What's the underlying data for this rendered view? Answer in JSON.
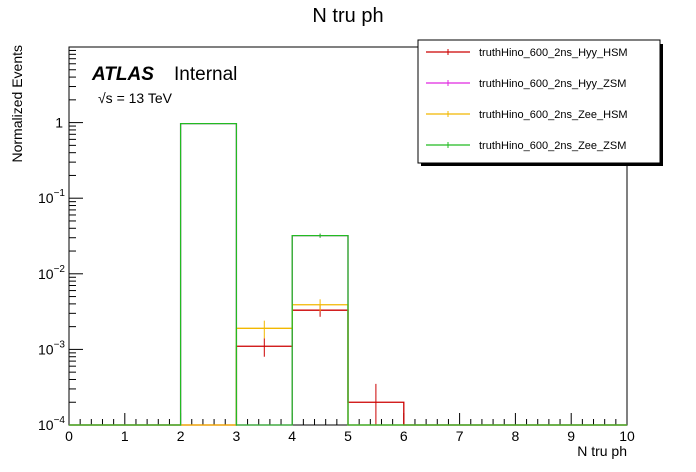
{
  "chart_data": {
    "type": "histogram",
    "title": "N tru ph",
    "xlabel": "N tru ph",
    "ylabel": "Normalized Events",
    "xlim": [
      0,
      10
    ],
    "ylim": [
      0.0001,
      10
    ],
    "yscale": "log",
    "x_ticks": [
      "0",
      "1",
      "2",
      "3",
      "4",
      "5",
      "6",
      "7",
      "8",
      "9",
      "10"
    ],
    "y_ticks": [
      {
        "value": 0.0001,
        "base": "10",
        "exp": "−4"
      },
      {
        "value": 0.001,
        "base": "10",
        "exp": "−3"
      },
      {
        "value": 0.01,
        "base": "10",
        "exp": "−2"
      },
      {
        "value": 0.1,
        "base": "10",
        "exp": "−1"
      },
      {
        "value": 1,
        "base": "1",
        "exp": ""
      }
    ],
    "atlas_label": "ATLAS",
    "atlas_status": "Internal",
    "energy_label": "√s = 13 TeV",
    "legend_position": "top-right",
    "bin_edges": [
      0,
      1,
      2,
      3,
      4,
      5,
      6,
      7,
      8,
      9,
      10
    ],
    "series": [
      {
        "name": "truthHino_600_2ns_Hyy_HSM",
        "color": "#cc0000",
        "values": [
          0,
          0,
          0,
          0.0011,
          0.0033,
          0.0002,
          0,
          0,
          0,
          0
        ],
        "errors": [
          0,
          0,
          0,
          0.0003,
          0.0006,
          0.00015,
          0,
          0,
          0,
          0
        ]
      },
      {
        "name": "truthHino_600_2ns_Hyy_ZSM",
        "color": "#e028e0",
        "values": [
          0,
          0,
          0.97,
          0,
          0.032,
          0,
          0,
          0,
          0,
          0
        ],
        "errors": [
          0,
          0,
          0.01,
          0,
          0.002,
          0,
          0,
          0,
          0,
          0
        ]
      },
      {
        "name": "truthHino_600_2ns_Zee_HSM",
        "color": "#f2b800",
        "values": [
          0,
          0,
          0,
          0.0019,
          0.0039,
          0,
          9e-05,
          0,
          0,
          0
        ],
        "errors": [
          0,
          0,
          0,
          0.0005,
          0.0007,
          0,
          0.0001,
          0,
          0,
          0
        ]
      },
      {
        "name": "truthHino_600_2ns_Zee_ZSM",
        "color": "#22bb22",
        "values": [
          0,
          0,
          0.97,
          0,
          0.032,
          0,
          0,
          0,
          0,
          0
        ],
        "errors": [
          0,
          0,
          0.01,
          0,
          0.002,
          0,
          0,
          0,
          0,
          0
        ]
      }
    ]
  }
}
